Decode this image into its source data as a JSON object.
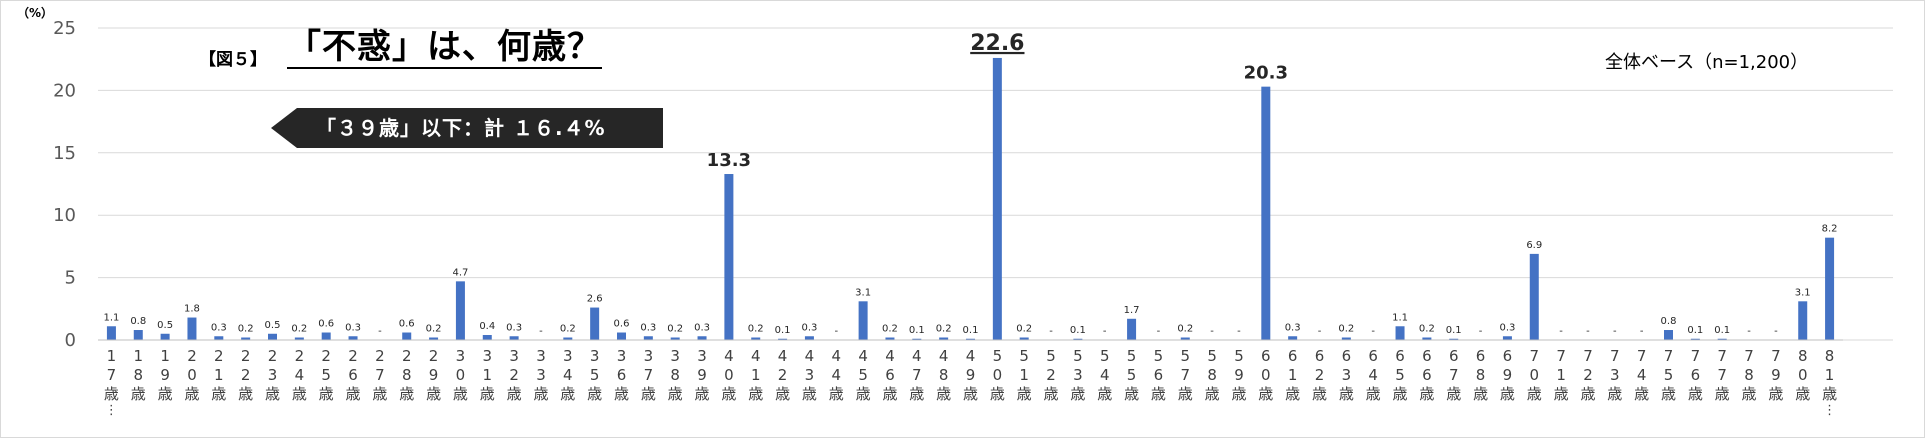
{
  "header": {
    "fig_tag": "【図５】",
    "title": "「不惑」は、何歳？",
    "callout": "「３９歳」以下：計 １６.４%",
    "base_note": "全体ベース（n=1,200）",
    "unit": "（%）"
  },
  "colors": {
    "bar": "#4472c4",
    "grid": "#d9d9d9",
    "callout": "#262626"
  },
  "chart_data": {
    "type": "bar",
    "ylabel": "（%）",
    "ylim": [
      0,
      25
    ],
    "yticks": [
      0,
      5,
      10,
      15,
      20,
      25
    ],
    "grid": true,
    "categories": [
      "17歳…",
      "18歳",
      "19歳",
      "20歳",
      "21歳",
      "22歳",
      "23歳",
      "24歳",
      "25歳",
      "26歳",
      "27歳",
      "28歳",
      "29歳",
      "30歳",
      "31歳",
      "32歳",
      "33歳",
      "34歳",
      "35歳",
      "36歳",
      "37歳",
      "38歳",
      "39歳",
      "40歳",
      "41歳",
      "42歳",
      "43歳",
      "44歳",
      "45歳",
      "46歳",
      "47歳",
      "48歳",
      "49歳",
      "50歳",
      "51歳",
      "52歳",
      "53歳",
      "54歳",
      "55歳",
      "56歳",
      "57歳",
      "58歳",
      "59歳",
      "60歳",
      "61歳",
      "62歳",
      "63歳",
      "64歳",
      "65歳",
      "66歳",
      "67歳",
      "68歳",
      "69歳",
      "70歳",
      "71歳",
      "72歳",
      "73歳",
      "74歳",
      "75歳",
      "76歳",
      "77歳",
      "78歳",
      "79歳",
      "80歳",
      "81歳…"
    ],
    "values": [
      1.1,
      0.8,
      0.5,
      1.8,
      0.3,
      0.2,
      0.5,
      0.2,
      0.6,
      0.3,
      0,
      0.6,
      0.2,
      4.7,
      0.4,
      0.3,
      0,
      0.2,
      2.6,
      0.6,
      0.3,
      0.2,
      0.3,
      13.3,
      0.2,
      0.1,
      0.3,
      0,
      3.1,
      0.2,
      0.1,
      0.2,
      0.1,
      22.6,
      0.2,
      0,
      0.1,
      0,
      1.7,
      0,
      0.2,
      0,
      0,
      20.3,
      0.3,
      0,
      0.2,
      0,
      1.1,
      0.2,
      0.1,
      0,
      0.3,
      6.9,
      0,
      0,
      0,
      0,
      0.8,
      0.1,
      0.1,
      0,
      0,
      3.1,
      8.2
    ],
    "labels": [
      "1.1",
      "0.8",
      "0.5",
      "1.8",
      "0.3",
      "0.2",
      "0.5",
      "0.2",
      "0.6",
      "0.3",
      "-",
      "0.6",
      "0.2",
      "4.7",
      "0.4",
      "0.3",
      "-",
      "0.2",
      "2.6",
      "0.6",
      "0.3",
      "0.2",
      "0.3",
      "13.3",
      "0.2",
      "0.1",
      "0.3",
      "-",
      "3.1",
      "0.2",
      "0.1",
      "0.2",
      "0.1",
      "22.6",
      "0.2",
      "-",
      "0.1",
      "-",
      "1.7",
      "-",
      "0.2",
      "-",
      "-",
      "20.3",
      "0.3",
      "-",
      "0.2",
      "-",
      "1.1",
      "0.2",
      "0.1",
      "-",
      "0.3",
      "6.9",
      "-",
      "-",
      "-",
      "-",
      "0.8",
      "0.1",
      "0.1",
      "-",
      "-",
      "3.1",
      "8.2"
    ],
    "highlight_labels": [
      "13.3",
      "22.6",
      "20.3"
    ],
    "underlined_label": "22.6"
  }
}
